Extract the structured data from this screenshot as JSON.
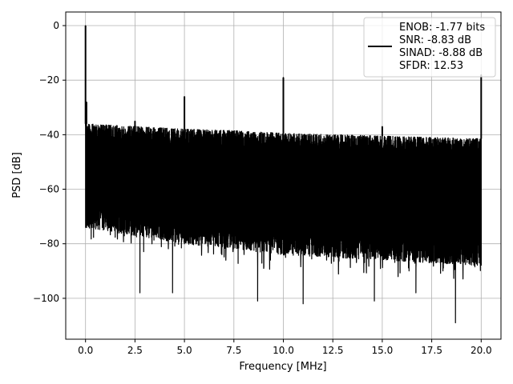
{
  "chart_data": {
    "type": "line",
    "title": "",
    "xlabel": "Frequency [MHz]",
    "ylabel": "PSD [dB]",
    "xlim": [
      -1.0,
      21.0
    ],
    "ylim": [
      -115,
      5
    ],
    "xticks": [
      0.0,
      2.5,
      5.0,
      7.5,
      10.0,
      12.5,
      15.0,
      17.5,
      20.0
    ],
    "xtick_labels": [
      "0.0",
      "2.5",
      "5.0",
      "7.5",
      "10.0",
      "12.5",
      "15.0",
      "17.5",
      "20.0"
    ],
    "yticks": [
      0,
      -20,
      -40,
      -60,
      -80,
      -100
    ],
    "ytick_labels": [
      "0",
      "−20",
      "−40",
      "−60",
      "−80",
      "−100"
    ],
    "grid": true,
    "legend_position": "top-right",
    "series": [
      {
        "color": "#000000",
        "noise_floor": {
          "x": [
            0.0,
            2.5,
            5.0,
            7.5,
            10.0,
            12.5,
            15.0,
            17.5,
            20.0
          ],
          "upper": [
            -36,
            -37,
            -38,
            -38.5,
            -39.5,
            -40,
            -40.5,
            -41,
            -41.5
          ],
          "lower": [
            -74,
            -77,
            -80,
            -82,
            -84,
            -85,
            -86,
            -87,
            -88
          ]
        },
        "peaks": [
          {
            "x": 0.0,
            "y": 0
          },
          {
            "x": 0.05,
            "y": -28
          },
          {
            "x": 2.5,
            "y": -35
          },
          {
            "x": 5.0,
            "y": -26
          },
          {
            "x": 10.0,
            "y": -19
          },
          {
            "x": 15.0,
            "y": -37
          },
          {
            "x": 20.0,
            "y": -18
          }
        ],
        "dips": [
          {
            "x": 2.75,
            "y": -98
          },
          {
            "x": 4.4,
            "y": -98
          },
          {
            "x": 8.7,
            "y": -101
          },
          {
            "x": 11.0,
            "y": -102
          },
          {
            "x": 14.6,
            "y": -101
          },
          {
            "x": 16.7,
            "y": -98
          },
          {
            "x": 18.7,
            "y": -109
          }
        ]
      }
    ],
    "legend_text": [
      "ENOB: -1.77 bits",
      "SNR: -8.83 dB",
      "SINAD: -8.88 dB",
      "SFDR: 12.53"
    ]
  }
}
